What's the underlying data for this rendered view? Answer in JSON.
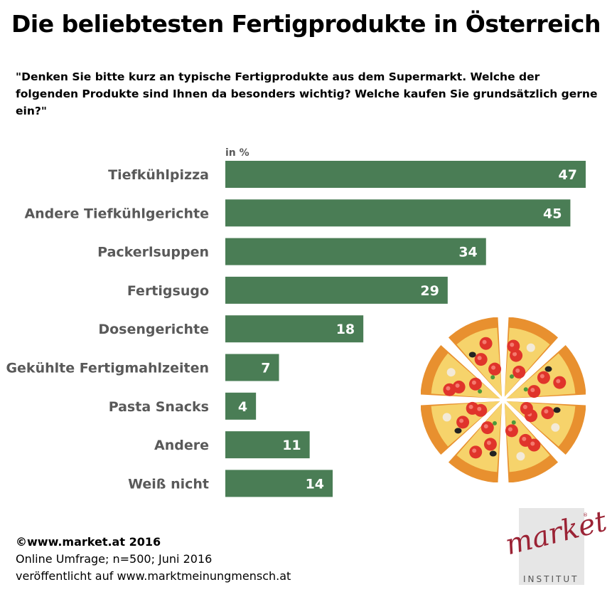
{
  "title": "Die beliebtesten Fertigprodukte in Österreich",
  "question": "\"Denken Sie bitte kurz an typische Fertigprodukte aus dem Supermarkt. Welche der folgenden Produkte sind Ihnen da besonders wichtig? Welche kaufen Sie grundsätzlich gerne ein?\"",
  "footer": {
    "copyright": "©www.market.at 2016",
    "survey": "Online Umfrage; n=500; Juni 2016",
    "published": "veröffentlicht auf www.marktmeinungmensch.at"
  },
  "logo": {
    "word": "market",
    "sub": "INSTITUT",
    "reg": "®"
  },
  "colors": {
    "bar": "#4a7d55",
    "label": "#595959"
  },
  "chart_data": {
    "type": "bar",
    "orientation": "horizontal",
    "unit_label": "in %",
    "categories": [
      "Tiefkühlpizza",
      "Andere Tiefkühlgerichte",
      "Packerlsuppen",
      "Fertigsugo",
      "Dosengerichte",
      "Gekühlte Fertigmahlzeiten",
      "Pasta Snacks",
      "Andere",
      "Weiß nicht"
    ],
    "values": [
      47,
      45,
      34,
      29,
      18,
      7,
      4,
      11,
      14
    ],
    "xlim": [
      0,
      47
    ],
    "grid": false,
    "legend": "none"
  }
}
